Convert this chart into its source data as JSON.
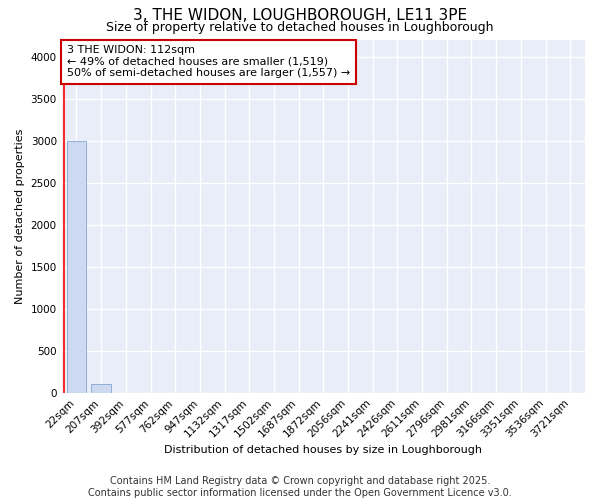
{
  "title": "3, THE WIDON, LOUGHBOROUGH, LE11 3PE",
  "subtitle": "Size of property relative to detached houses in Loughborough",
  "xlabel": "Distribution of detached houses by size in Loughborough",
  "ylabel": "Number of detached properties",
  "categories": [
    "22sqm",
    "207sqm",
    "392sqm",
    "577sqm",
    "762sqm",
    "947sqm",
    "1132sqm",
    "1317sqm",
    "1502sqm",
    "1687sqm",
    "1872sqm",
    "2056sqm",
    "2241sqm",
    "2426sqm",
    "2611sqm",
    "2796sqm",
    "2981sqm",
    "3166sqm",
    "3351sqm",
    "3536sqm",
    "3721sqm"
  ],
  "values": [
    3000,
    110,
    0,
    0,
    0,
    0,
    0,
    0,
    0,
    0,
    0,
    0,
    0,
    0,
    0,
    0,
    0,
    0,
    0,
    0,
    0
  ],
  "bar_color": "#ccd9f0",
  "bar_edge_color": "#7799cc",
  "red_line_x": -0.5,
  "annotation_text": "3 THE WIDON: 112sqm\n← 49% of detached houses are smaller (1,519)\n50% of semi-detached houses are larger (1,557) →",
  "annotation_box_color": "#ffffff",
  "annotation_box_edge_color": "#cc0000",
  "ylim": [
    0,
    4200
  ],
  "yticks": [
    0,
    500,
    1000,
    1500,
    2000,
    2500,
    3000,
    3500,
    4000
  ],
  "background_color": "#e8edf8",
  "grid_color": "#ffffff",
  "footer_line1": "Contains HM Land Registry data © Crown copyright and database right 2025.",
  "footer_line2": "Contains public sector information licensed under the Open Government Licence v3.0.",
  "title_fontsize": 11,
  "subtitle_fontsize": 9,
  "axis_label_fontsize": 8,
  "tick_fontsize": 7.5,
  "annotation_fontsize": 8,
  "footer_fontsize": 7
}
